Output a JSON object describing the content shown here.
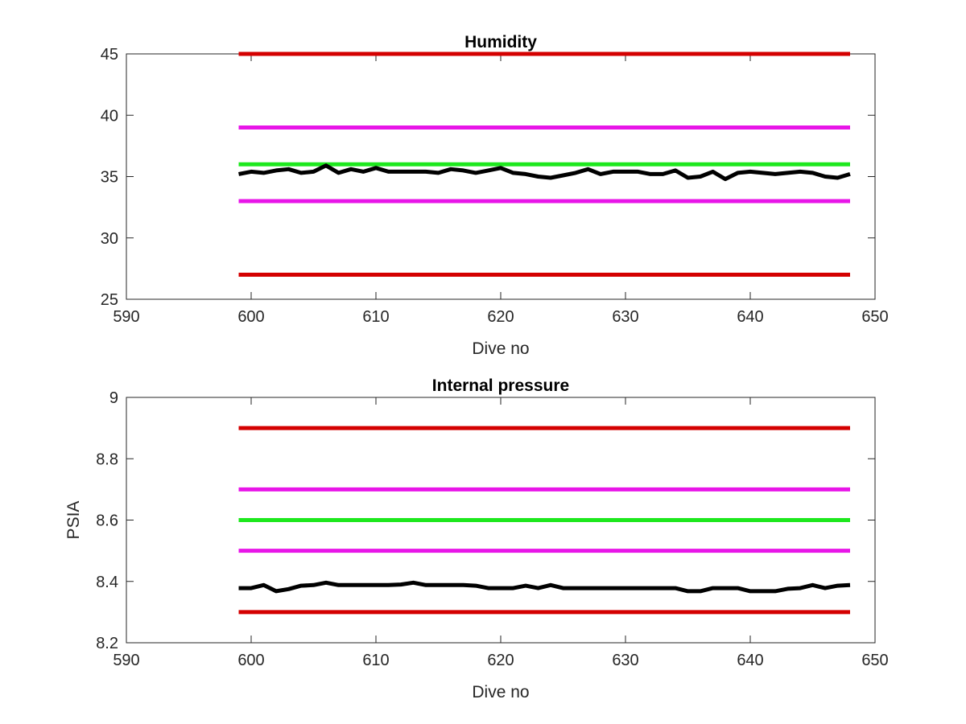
{
  "chart_data": [
    {
      "type": "line",
      "title": "Humidity",
      "xlabel": "Dive no",
      "ylabel": "",
      "xlim": [
        590,
        650
      ],
      "ylim": [
        25,
        45
      ],
      "xticks": [
        "590",
        "600",
        "610",
        "620",
        "630",
        "640",
        "650"
      ],
      "yticks": [
        "25",
        "30",
        "35",
        "40",
        "45"
      ],
      "grid": false,
      "series": [
        {
          "color": "#d40000",
          "values": [
            [
              599,
              45
            ],
            [
              648,
              45
            ]
          ]
        },
        {
          "color": "#e815e8",
          "values": [
            [
              599,
              39
            ],
            [
              648,
              39
            ]
          ]
        },
        {
          "color": "#1de81d",
          "values": [
            [
              599,
              36
            ],
            [
              648,
              36
            ]
          ]
        },
        {
          "color": "#e815e8",
          "values": [
            [
              599,
              33
            ],
            [
              648,
              33
            ]
          ]
        },
        {
          "color": "#d40000",
          "values": [
            [
              599,
              27
            ],
            [
              648,
              27
            ]
          ]
        },
        {
          "color": "#000000",
          "values": [
            [
              599,
              35.2
            ],
            [
              600,
              35.4
            ],
            [
              601,
              35.3
            ],
            [
              602,
              35.5
            ],
            [
              603,
              35.6
            ],
            [
              604,
              35.3
            ],
            [
              605,
              35.4
            ],
            [
              606,
              35.9
            ],
            [
              607,
              35.3
            ],
            [
              608,
              35.6
            ],
            [
              609,
              35.4
            ],
            [
              610,
              35.7
            ],
            [
              611,
              35.4
            ],
            [
              612,
              35.4
            ],
            [
              613,
              35.4
            ],
            [
              614,
              35.4
            ],
            [
              615,
              35.3
            ],
            [
              616,
              35.6
            ],
            [
              617,
              35.5
            ],
            [
              618,
              35.3
            ],
            [
              619,
              35.5
            ],
            [
              620,
              35.7
            ],
            [
              621,
              35.3
            ],
            [
              622,
              35.2
            ],
            [
              623,
              35.0
            ],
            [
              624,
              34.9
            ],
            [
              625,
              35.1
            ],
            [
              626,
              35.3
            ],
            [
              627,
              35.6
            ],
            [
              628,
              35.2
            ],
            [
              629,
              35.4
            ],
            [
              630,
              35.4
            ],
            [
              631,
              35.4
            ],
            [
              632,
              35.2
            ],
            [
              633,
              35.2
            ],
            [
              634,
              35.5
            ],
            [
              635,
              34.9
            ],
            [
              636,
              35.0
            ],
            [
              637,
              35.4
            ],
            [
              638,
              34.8
            ],
            [
              639,
              35.3
            ],
            [
              640,
              35.4
            ],
            [
              641,
              35.3
            ],
            [
              642,
              35.2
            ],
            [
              643,
              35.3
            ],
            [
              644,
              35.4
            ],
            [
              645,
              35.3
            ],
            [
              646,
              35.0
            ],
            [
              647,
              34.9
            ],
            [
              648,
              35.2
            ]
          ]
        }
      ]
    },
    {
      "type": "line",
      "title": "Internal pressure",
      "xlabel": "Dive no",
      "ylabel": "PSIA",
      "xlim": [
        590,
        650
      ],
      "ylim": [
        8.2,
        9
      ],
      "xticks": [
        "590",
        "600",
        "610",
        "620",
        "630",
        "640",
        "650"
      ],
      "yticks": [
        "8.2",
        "8.4",
        "8.6",
        "8.8",
        "9"
      ],
      "grid": false,
      "series": [
        {
          "color": "#d40000",
          "values": [
            [
              599,
              8.9
            ],
            [
              648,
              8.9
            ]
          ]
        },
        {
          "color": "#e815e8",
          "values": [
            [
              599,
              8.7
            ],
            [
              648,
              8.7
            ]
          ]
        },
        {
          "color": "#1de81d",
          "values": [
            [
              599,
              8.6
            ],
            [
              648,
              8.6
            ]
          ]
        },
        {
          "color": "#e815e8",
          "values": [
            [
              599,
              8.5
            ],
            [
              648,
              8.5
            ]
          ]
        },
        {
          "color": "#d40000",
          "values": [
            [
              599,
              8.3
            ],
            [
              648,
              8.3
            ]
          ]
        },
        {
          "color": "#000000",
          "values": [
            [
              599,
              8.378
            ],
            [
              600,
              8.378
            ],
            [
              601,
              8.388
            ],
            [
              602,
              8.368
            ],
            [
              603,
              8.375
            ],
            [
              604,
              8.386
            ],
            [
              605,
              8.388
            ],
            [
              606,
              8.396
            ],
            [
              607,
              8.388
            ],
            [
              608,
              8.388
            ],
            [
              609,
              8.388
            ],
            [
              610,
              8.388
            ],
            [
              611,
              8.388
            ],
            [
              612,
              8.39
            ],
            [
              613,
              8.396
            ],
            [
              614,
              8.388
            ],
            [
              615,
              8.388
            ],
            [
              616,
              8.388
            ],
            [
              617,
              8.388
            ],
            [
              618,
              8.386
            ],
            [
              619,
              8.378
            ],
            [
              620,
              8.378
            ],
            [
              621,
              8.378
            ],
            [
              622,
              8.386
            ],
            [
              623,
              8.378
            ],
            [
              624,
              8.388
            ],
            [
              625,
              8.378
            ],
            [
              626,
              8.378
            ],
            [
              627,
              8.378
            ],
            [
              628,
              8.378
            ],
            [
              629,
              8.378
            ],
            [
              630,
              8.378
            ],
            [
              631,
              8.378
            ],
            [
              632,
              8.378
            ],
            [
              633,
              8.378
            ],
            [
              634,
              8.378
            ],
            [
              635,
              8.368
            ],
            [
              636,
              8.368
            ],
            [
              637,
              8.378
            ],
            [
              638,
              8.378
            ],
            [
              639,
              8.378
            ],
            [
              640,
              8.368
            ],
            [
              641,
              8.368
            ],
            [
              642,
              8.368
            ],
            [
              643,
              8.376
            ],
            [
              644,
              8.378
            ],
            [
              645,
              8.388
            ],
            [
              646,
              8.378
            ],
            [
              647,
              8.386
            ],
            [
              648,
              8.388
            ]
          ]
        }
      ]
    }
  ]
}
